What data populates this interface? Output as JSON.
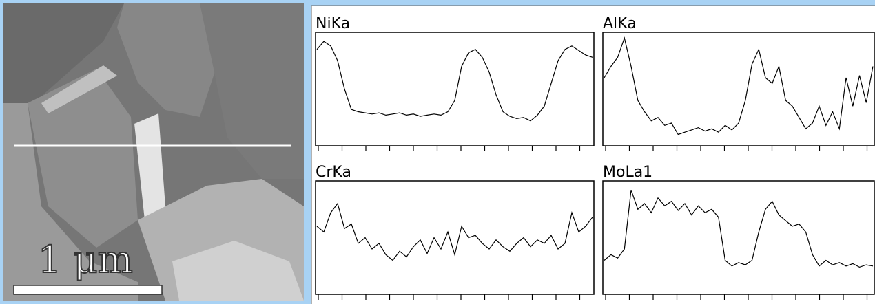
{
  "scale_bar": "1 μm",
  "panels": [
    {
      "label": "NiKa",
      "values": [
        85,
        92,
        88,
        75,
        50,
        32,
        30,
        29,
        28,
        29,
        27,
        28,
        29,
        27,
        28,
        26,
        27,
        28,
        27,
        30,
        40,
        70,
        82,
        85,
        78,
        65,
        45,
        30,
        26,
        24,
        25,
        22,
        27,
        35,
        55,
        75,
        85,
        88,
        84,
        80,
        78
      ]
    },
    {
      "label": "AlKa",
      "values": [
        60,
        70,
        78,
        95,
        70,
        40,
        30,
        22,
        25,
        18,
        20,
        10,
        12,
        14,
        16,
        13,
        15,
        12,
        18,
        14,
        20,
        40,
        72,
        85,
        60,
        55,
        70,
        40,
        35,
        25,
        15,
        20,
        35,
        18,
        30,
        15,
        60,
        35,
        62,
        38,
        70
      ]
    },
    {
      "label": "CrKa",
      "values": [
        60,
        55,
        72,
        80,
        58,
        62,
        45,
        50,
        40,
        45,
        35,
        30,
        38,
        33,
        42,
        48,
        36,
        50,
        40,
        55,
        35,
        60,
        50,
        52,
        45,
        40,
        48,
        42,
        38,
        45,
        50,
        42,
        48,
        45,
        52,
        40,
        45,
        72,
        55,
        60,
        68
      ]
    },
    {
      "label": "MoLa1",
      "values": [
        30,
        35,
        32,
        40,
        92,
        75,
        80,
        72,
        85,
        78,
        82,
        74,
        80,
        70,
        78,
        72,
        75,
        68,
        30,
        25,
        28,
        26,
        30,
        55,
        75,
        82,
        70,
        65,
        60,
        62,
        55,
        35,
        25,
        30,
        26,
        28,
        25,
        27,
        24,
        26,
        25
      ]
    }
  ]
}
